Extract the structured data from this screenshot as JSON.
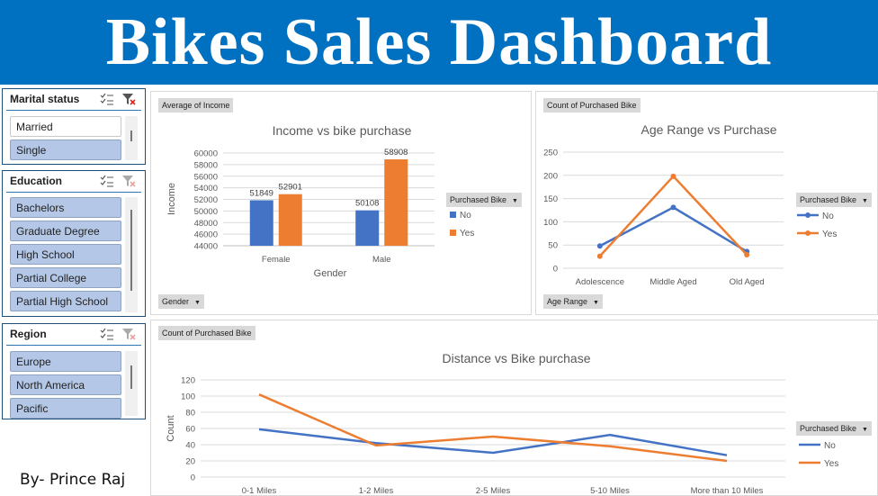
{
  "banner": {
    "title": "Bikes Sales Dashboard"
  },
  "slicers": {
    "marital": {
      "title": "Marital status",
      "items": [
        "Married",
        "Single"
      ]
    },
    "education": {
      "title": "Education",
      "items": [
        "Bachelors",
        "Graduate Degree",
        "High School",
        "Partial College",
        "Partial High School"
      ]
    },
    "region": {
      "title": "Region",
      "items": [
        "Europe",
        "North America",
        "Pacific"
      ]
    }
  },
  "credit": "By- Prince Raj",
  "colors": {
    "no": "#4472c4",
    "yes": "#ed7d31",
    "banner": "#0070c0"
  },
  "charts": {
    "income": {
      "value_field": "Average of Income",
      "axis_field": "Gender",
      "legend_title": "Purchased Bike",
      "legend_no": "No",
      "legend_yes": "Yes"
    },
    "age": {
      "value_field": "Count of Purchased Bike",
      "axis_field": "Age Range",
      "legend_title": "Purchased Bike",
      "legend_no": "No",
      "legend_yes": "Yes"
    },
    "distance": {
      "value_field": "Count of Purchased Bike",
      "legend_title": "Purchased Bike",
      "legend_no": "No",
      "legend_yes": "Yes"
    }
  },
  "chart_data": [
    {
      "type": "bar",
      "title": "Income vs bike purchase",
      "xlabel": "Gender",
      "ylabel": "Income",
      "categories": [
        "Female",
        "Male"
      ],
      "series": [
        {
          "name": "No",
          "values": [
            51849,
            50108
          ]
        },
        {
          "name": "Yes",
          "values": [
            52901,
            58908
          ]
        }
      ],
      "ylim": [
        44000,
        60000
      ],
      "yticks": [
        44000,
        46000,
        48000,
        50000,
        52000,
        54000,
        56000,
        58000,
        60000
      ],
      "legend": "right"
    },
    {
      "type": "line",
      "title": "Age Range vs Purchase",
      "xlabel": "",
      "ylabel": "",
      "categories": [
        "Adolescence",
        "Middle Aged",
        "Old Aged"
      ],
      "series": [
        {
          "name": "No",
          "values": [
            48,
            131,
            36
          ]
        },
        {
          "name": "Yes",
          "values": [
            26,
            198,
            29
          ]
        }
      ],
      "ylim": [
        0,
        250
      ],
      "yticks": [
        0,
        50,
        100,
        150,
        200,
        250
      ],
      "legend": "right"
    },
    {
      "type": "line",
      "title": "Distance vs Bike purchase",
      "xlabel": "",
      "ylabel": "Count",
      "categories": [
        "0-1 Miles",
        "1-2 Miles",
        "2-5 Miles",
        "5-10 Miles",
        "More than 10 Miles"
      ],
      "series": [
        {
          "name": "No",
          "values": [
            59,
            42,
            30,
            52,
            27
          ]
        },
        {
          "name": "Yes",
          "values": [
            102,
            39,
            50,
            38,
            20
          ]
        }
      ],
      "ylim": [
        0,
        120
      ],
      "yticks": [
        0,
        20,
        40,
        60,
        80,
        100,
        120
      ],
      "legend": "right"
    }
  ]
}
